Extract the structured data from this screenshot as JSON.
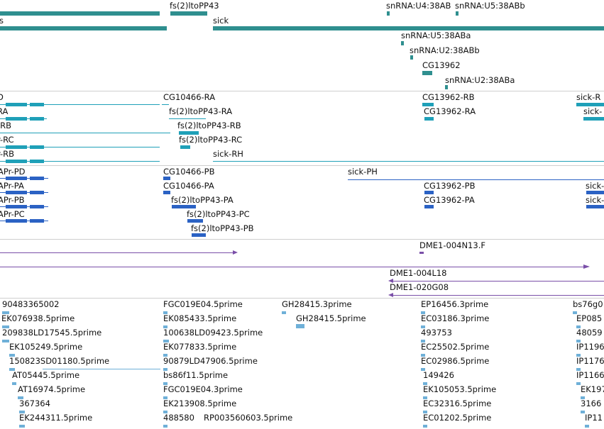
{
  "colors": {
    "gene": "#2f8f8f",
    "tx1": "#1fa0b8",
    "tx2": "#2b62c4",
    "est": "#7a4fa8",
    "read": "#6fb0d8",
    "line": "#2fa9c2"
  },
  "tracks": {
    "genes": [
      {
        "label": "fs(2)ltoPP43"
      },
      {
        "label": "snRNA:U4:38AB"
      },
      {
        "label": "snRNA:U5:38ABb"
      },
      {
        "label": "s"
      },
      {
        "label": "sick"
      },
      {
        "label": "snRNA:U5:38ABa"
      },
      {
        "label": "snRNA:U2:38ABb"
      },
      {
        "label": "CG13962"
      },
      {
        "label": "snRNA:U2:38ABa"
      }
    ],
    "transcripts_a": [
      {
        "label": "D"
      },
      {
        "label": "CG10466-RA"
      },
      {
        "label": "CG13962-RB"
      },
      {
        "label": "sick-R"
      },
      {
        "label": "RA"
      },
      {
        "label": "fs(2)ltoPP43-RA"
      },
      {
        "label": "CG13962-RA"
      },
      {
        "label": "sick-"
      },
      {
        "label": "-RB"
      },
      {
        "label": "fs(2)ltoPP43-RB"
      },
      {
        "label": "r-RC"
      },
      {
        "label": "fs(2)ltoPP43-RC"
      },
      {
        "label": "r-RB"
      },
      {
        "label": "sick-RH"
      }
    ],
    "transcripts_b": [
      {
        "label": "APr-PD"
      },
      {
        "label": "CG10466-PB"
      },
      {
        "label": "sick-PH"
      },
      {
        "label": "APr-PA"
      },
      {
        "label": "CG10466-PA"
      },
      {
        "label": "CG13962-PB"
      },
      {
        "label": "sick-"
      },
      {
        "label": "APr-PB"
      },
      {
        "label": "fs(2)ltoPP43-PA"
      },
      {
        "label": "CG13962-PA"
      },
      {
        "label": "sick-"
      },
      {
        "label": "APr-PC"
      },
      {
        "label": "fs(2)ltoPP43-PC"
      },
      {
        "label": "fs(2)ltoPP43-PB"
      }
    ],
    "ests": [
      {
        "label": "DME1-004N13.F"
      },
      {
        "label": "DME1-004L18"
      },
      {
        "label": "DME1-020G08"
      }
    ],
    "reads": [
      {
        "label": "90483365002"
      },
      {
        "label": "FGC019E04.5prime"
      },
      {
        "label": "GH28415.3prime"
      },
      {
        "label": "EP16456.3prime"
      },
      {
        "label": "bs76g0"
      },
      {
        "label": "EK076938.5prime"
      },
      {
        "label": "EK085433.5prime"
      },
      {
        "label": "GH28415.5prime"
      },
      {
        "label": "EC03186.3prime"
      },
      {
        "label": "EP085"
      },
      {
        "label": "209838LD17545.5prime"
      },
      {
        "label": "100638LD09423.5prime"
      },
      {
        "label": "493753"
      },
      {
        "label": "48059"
      },
      {
        "label": "EK105249.5prime"
      },
      {
        "label": "EK077833.5prime"
      },
      {
        "label": "EC25502.5prime"
      },
      {
        "label": "IP1196"
      },
      {
        "label": "150823SD01180.5prime"
      },
      {
        "label": "90879LD47906.5prime"
      },
      {
        "label": "EC02986.5prime"
      },
      {
        "label": "IP1176"
      },
      {
        "label": "AT05445.5prime"
      },
      {
        "label": "bs86f11.5prime"
      },
      {
        "label": "149426"
      },
      {
        "label": "IP1166"
      },
      {
        "label": "AT16974.5prime"
      },
      {
        "label": "FGC019E04.3prime"
      },
      {
        "label": "EK105053.5prime"
      },
      {
        "label": "EK197"
      },
      {
        "label": "367364"
      },
      {
        "label": "EK213908.5prime"
      },
      {
        "label": "EC32316.5prime"
      },
      {
        "label": "3166"
      },
      {
        "label": "EK244311.5prime"
      },
      {
        "label": "488580"
      },
      {
        "label": "RP003560603.5prime"
      },
      {
        "label": "EC01202.5prime"
      },
      {
        "label": "IP11"
      }
    ]
  }
}
